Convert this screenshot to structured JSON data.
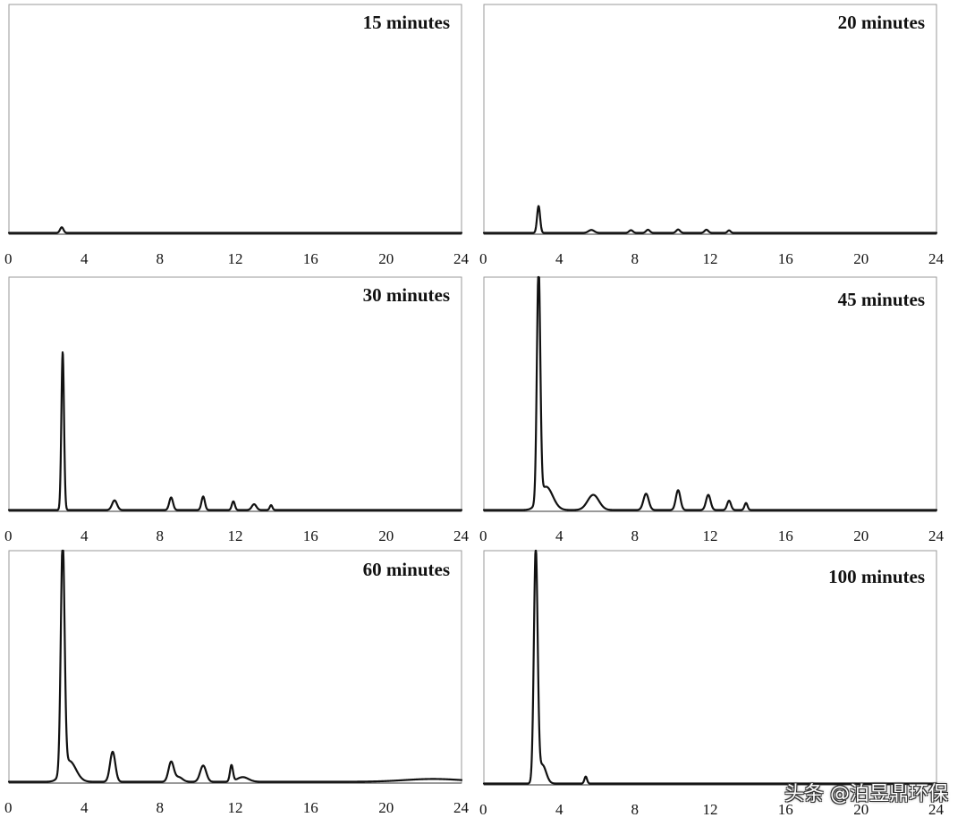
{
  "watermark": "头条 @泊昱鼎环保",
  "chart_data": [
    {
      "type": "line",
      "title": "15 minutes",
      "xlim": [
        0,
        24
      ],
      "ylim": [
        0,
        100
      ],
      "xticks": [
        0,
        4,
        8,
        12,
        16,
        20,
        24
      ],
      "grid": false,
      "peaks": [
        {
          "x": 2.8,
          "y": 2.5,
          "w": 0.09
        }
      ]
    },
    {
      "type": "line",
      "title": "20 minutes",
      "xlim": [
        0,
        24
      ],
      "ylim": [
        0,
        100
      ],
      "xticks": [
        0,
        4,
        8,
        12,
        16,
        20,
        24
      ],
      "grid": false,
      "peaks": [
        {
          "x": 2.9,
          "y": 12,
          "w": 0.08
        },
        {
          "x": 5.7,
          "y": 1.3,
          "w": 0.15
        },
        {
          "x": 7.8,
          "y": 1.2,
          "w": 0.1
        },
        {
          "x": 8.7,
          "y": 1.4,
          "w": 0.1
        },
        {
          "x": 10.3,
          "y": 1.5,
          "w": 0.1
        },
        {
          "x": 11.8,
          "y": 1.4,
          "w": 0.1
        },
        {
          "x": 13.0,
          "y": 1.1,
          "w": 0.08
        }
      ]
    },
    {
      "type": "line",
      "title": "30 minutes",
      "xlim": [
        0,
        24
      ],
      "ylim": [
        0,
        100
      ],
      "xticks": [
        0,
        4,
        8,
        12,
        16,
        20,
        24
      ],
      "grid": false,
      "peaks": [
        {
          "x": 2.85,
          "y": 82,
          "w": 0.07
        },
        {
          "x": 5.6,
          "y": 5,
          "w": 0.13
        },
        {
          "x": 8.6,
          "y": 6.5,
          "w": 0.1
        },
        {
          "x": 10.3,
          "y": 7,
          "w": 0.09
        },
        {
          "x": 11.9,
          "y": 4.5,
          "w": 0.08
        },
        {
          "x": 13.0,
          "y": 3,
          "w": 0.12
        },
        {
          "x": 13.9,
          "y": 2.5,
          "w": 0.07
        }
      ]
    },
    {
      "type": "line",
      "title": "45 minutes",
      "xlim": [
        0,
        24
      ],
      "ylim": [
        0,
        100
      ],
      "xticks": [
        0,
        4,
        8,
        12,
        16,
        20,
        24
      ],
      "grid": false,
      "peaks": [
        {
          "x": 2.9,
          "y": 100,
          "w": 0.09
        },
        {
          "x": 3.3,
          "y": 10,
          "w": 0.35
        },
        {
          "x": 5.8,
          "y": 6.5,
          "w": 0.3
        },
        {
          "x": 8.6,
          "y": 7,
          "w": 0.14
        },
        {
          "x": 10.3,
          "y": 8.5,
          "w": 0.12
        },
        {
          "x": 11.9,
          "y": 6.5,
          "w": 0.12
        },
        {
          "x": 13.0,
          "y": 4,
          "w": 0.1
        },
        {
          "x": 13.9,
          "y": 3,
          "w": 0.08
        }
      ]
    },
    {
      "type": "line",
      "title": "60 minutes",
      "xlim": [
        0,
        24
      ],
      "ylim": [
        0,
        100
      ],
      "xticks": [
        0,
        4,
        8,
        12,
        16,
        20,
        24
      ],
      "grid": false,
      "peaks": [
        {
          "x": 2.85,
          "y": 100,
          "w": 0.1
        },
        {
          "x": 3.2,
          "y": 9,
          "w": 0.35
        },
        {
          "x": 5.5,
          "y": 13,
          "w": 0.14
        },
        {
          "x": 8.6,
          "y": 8.5,
          "w": 0.14
        },
        {
          "x": 9.0,
          "y": 2,
          "w": 0.2
        },
        {
          "x": 10.3,
          "y": 7,
          "w": 0.16
        },
        {
          "x": 11.8,
          "y": 7,
          "w": 0.08
        },
        {
          "x": 12.4,
          "y": 2,
          "w": 0.3
        },
        {
          "x": 22.5,
          "y": 1.2,
          "w": 1.5
        }
      ]
    },
    {
      "type": "line",
      "title": "100 minutes",
      "xlim": [
        0,
        24
      ],
      "ylim": [
        0,
        100
      ],
      "xticks": [
        0,
        4,
        8,
        12,
        16,
        20,
        24
      ],
      "grid": false,
      "peaks": [
        {
          "x": 2.75,
          "y": 100,
          "w": 0.1
        },
        {
          "x": 3.1,
          "y": 8,
          "w": 0.2
        },
        {
          "x": 5.4,
          "y": 3,
          "w": 0.07
        }
      ]
    }
  ]
}
